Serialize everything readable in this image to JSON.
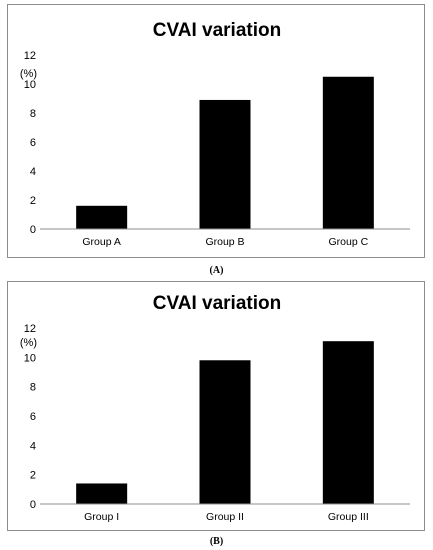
{
  "chart_data": [
    {
      "type": "bar",
      "title": "CVAI variation",
      "ylabel": "(%)",
      "categories": [
        "Group A",
        "Group B",
        "Group C"
      ],
      "values": [
        1.6,
        8.9,
        10.5
      ],
      "ylim": [
        0,
        12
      ],
      "yticks": [
        "0",
        "2",
        "4",
        "6",
        "8",
        "10",
        "12"
      ],
      "bar_color": "#000000",
      "grid": false
    },
    {
      "type": "bar",
      "title": "CVAI variation",
      "ylabel": "(%)",
      "categories": [
        "Group I",
        "Group II",
        "Group III"
      ],
      "values": [
        1.4,
        9.8,
        11.1
      ],
      "ylim": [
        0,
        12
      ],
      "yticks": [
        "0",
        "2",
        "4",
        "6",
        "8",
        "10",
        "12"
      ],
      "bar_color": "#000000",
      "grid": false
    }
  ],
  "captions": [
    "(A)",
    "(B)"
  ]
}
